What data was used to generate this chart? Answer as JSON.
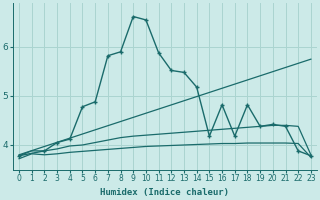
{
  "xlabel": "Humidex (Indice chaleur)",
  "x_ticks": [
    0,
    1,
    2,
    3,
    4,
    5,
    6,
    7,
    8,
    9,
    10,
    11,
    12,
    13,
    14,
    15,
    16,
    17,
    18,
    19,
    20,
    21,
    22,
    23
  ],
  "xlim": [
    -0.5,
    23.5
  ],
  "ylim": [
    3.5,
    6.9
  ],
  "y_ticks": [
    4,
    5,
    6
  ],
  "bg_color": "#cceae8",
  "grid_color": "#aad4d0",
  "line_color": "#1a6b6b",
  "series": [
    {
      "x": [
        0,
        1,
        2,
        3,
        4,
        5,
        6,
        7,
        8,
        9,
        10,
        11,
        12,
        13,
        14,
        15,
        16,
        17,
        18,
        19,
        20,
        21,
        22,
        23
      ],
      "y": [
        3.72,
        3.82,
        3.8,
        3.82,
        3.85,
        3.87,
        3.89,
        3.91,
        3.93,
        3.95,
        3.97,
        3.98,
        3.99,
        4.0,
        4.01,
        4.02,
        4.03,
        4.03,
        4.04,
        4.04,
        4.04,
        4.04,
        4.03,
        3.75
      ],
      "marker": null,
      "linestyle": "-",
      "linewidth": 0.9
    },
    {
      "x": [
        0,
        1,
        2,
        3,
        4,
        5,
        6,
        7,
        8,
        9,
        10,
        11,
        12,
        13,
        14,
        15,
        16,
        17,
        18,
        19,
        20,
        21,
        22,
        23
      ],
      "y": [
        3.78,
        3.88,
        3.88,
        3.92,
        3.98,
        4.0,
        4.05,
        4.1,
        4.15,
        4.18,
        4.2,
        4.22,
        4.24,
        4.26,
        4.28,
        4.3,
        4.32,
        4.34,
        4.36,
        4.38,
        4.4,
        4.4,
        4.38,
        3.8
      ],
      "marker": null,
      "linestyle": "-",
      "linewidth": 0.9
    },
    {
      "x": [
        0,
        23
      ],
      "y": [
        3.8,
        5.75
      ],
      "marker": null,
      "linestyle": "-",
      "linewidth": 0.9
    },
    {
      "x": [
        0,
        2,
        3,
        4,
        5,
        6,
        7,
        8,
        9,
        10,
        11,
        12,
        13,
        14,
        15,
        16,
        17,
        18,
        19,
        20,
        21,
        22,
        23
      ],
      "y": [
        3.78,
        3.88,
        4.05,
        4.12,
        4.78,
        4.88,
        5.82,
        5.9,
        6.62,
        6.55,
        5.88,
        5.52,
        5.48,
        5.18,
        4.18,
        4.82,
        4.18,
        4.82,
        4.38,
        4.42,
        4.38,
        3.88,
        3.78
      ],
      "marker": "+",
      "linestyle": "-",
      "linewidth": 1.0
    }
  ]
}
